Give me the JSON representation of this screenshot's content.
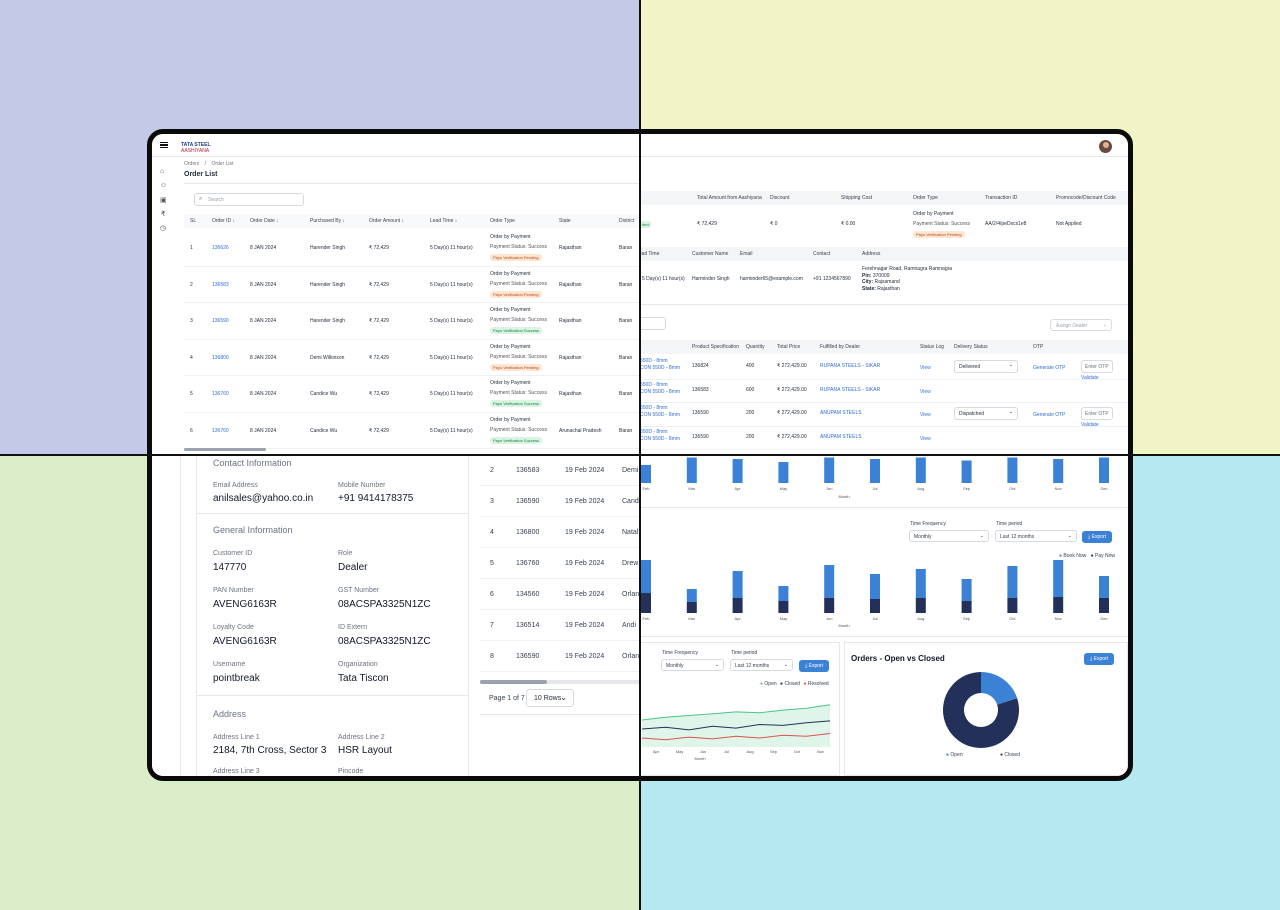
{
  "brand": {
    "line1": "TATA STEEL",
    "line2": "AASHIYANA"
  },
  "breadcrumb": {
    "item1": "Orders",
    "sep": "/",
    "item2": "Order List"
  },
  "page_title": "Order List",
  "search": {
    "placeholder": "Search"
  },
  "order_table": {
    "headers": [
      "SL",
      "Order ID",
      "Order Date",
      "Purchased By",
      "Order Amount",
      "Lead Time",
      "Order Type",
      "State",
      "District"
    ],
    "rows": [
      {
        "sl": "1",
        "id": "136626",
        "date": "8 JAN 2024",
        "by": "Harender Singh",
        "amount": "₹ 72,429",
        "lead": "5 Day(s) 11 hour(s)",
        "type": "Order by Payment",
        "pay": "Payment Status: Success",
        "badge": "Payu Verification Pending",
        "badge_kind": "pend",
        "state": "Rajasthan",
        "district": "Baran"
      },
      {
        "sl": "2",
        "id": "136583",
        "date": "8 JAN 2024",
        "by": "Harender Singh",
        "amount": "₹ 72,429",
        "lead": "5 Day(s) 11 hour(s)",
        "type": "Order by Payment",
        "pay": "Payment Status: Success",
        "badge": "Payu Verification Pending",
        "badge_kind": "pend",
        "state": "Rajasthan",
        "district": "Baran"
      },
      {
        "sl": "3",
        "id": "136590",
        "date": "8 JAN 2024",
        "by": "Harender Singh",
        "amount": "₹ 72,429",
        "lead": "5 Day(s) 11 hour(s)",
        "type": "Order by Payment",
        "pay": "Payment Status: Success",
        "badge": "Payu Verification Success",
        "badge_kind": "succ",
        "state": "Rajasthan",
        "district": "Baran"
      },
      {
        "sl": "4",
        "id": "136800",
        "date": "8 JAN 2024",
        "by": "Demi Wilkinson",
        "amount": "₹ 72,429",
        "lead": "5 Day(s) 11 hour(s)",
        "type": "Order by Payment",
        "pay": "Payment Status: Success",
        "badge": "Payu Verification Pending",
        "badge_kind": "pend",
        "state": "Rajasthan",
        "district": "Baran"
      },
      {
        "sl": "5",
        "id": "136760",
        "date": "8 JAN 2024",
        "by": "Candice Wu",
        "amount": "₹ 72,429",
        "lead": "5 Day(s) 11 hour(s)",
        "type": "Order by Payment",
        "pay": "Payment Status: Success",
        "badge": "Payu Verification Success",
        "badge_kind": "succ",
        "state": "Rajasthan",
        "district": "Baran"
      },
      {
        "sl": "6",
        "id": "136760",
        "date": "8 JAN 2024",
        "by": "Candice Wu",
        "amount": "₹ 72,429",
        "lead": "5 Day(s) 11 hour(s)",
        "type": "Order by Payment",
        "pay": "Payment Status: Success",
        "badge": "Payu Verification Success",
        "badge_kind": "succ",
        "state": "Arunachal Pradesh",
        "district": "Baran"
      }
    ]
  },
  "summary": {
    "headers": [
      "Total Amount from Aashiyana",
      "Discount",
      "Shipping Cost",
      "Order Type",
      "Transaction ID",
      "Promocode/Discount Code"
    ],
    "values": [
      "₹ 72,429",
      "₹ 0",
      "₹ 0.00",
      "",
      "AA/2/4/peDxcs1e8",
      "Not Applied"
    ],
    "first_cell": "ded",
    "order_type_lines": [
      "Order by Payment",
      "Payment Status: Success",
      "Payu Verification Pending"
    ]
  },
  "customer": {
    "headers": [
      "Lead Time",
      "Customer Name",
      "Email",
      "Contact",
      "Address"
    ],
    "lead": "5 Day(s) 11 hour(s)",
    "name": "Harminder Singh",
    "email": "harminder65@example.com",
    "contact": "+91 1234567890",
    "address_line": "Ferehnagar Road, Ramnagra Ramnagra",
    "pin_label": "Pin:",
    "pin": "370009",
    "city_label": "City:",
    "city": "Rajsamand",
    "state_label": "State:",
    "state": "Rajasthan"
  },
  "items": {
    "assign": "Assign Dealer",
    "headers": [
      "Product Specification",
      "Quantity",
      "Total Price",
      "Fulfilled by Dealer",
      "Status Log",
      "Delivery Status",
      "OTP"
    ],
    "rows": [
      {
        "p1": "550D - 8mm",
        "p2": "CON 550D - 8mm",
        "spec": "136824",
        "qty": "400",
        "price": "₹ 272,429.00",
        "dealer": "RUPANA STEELS - SIKAR",
        "log": "View",
        "status": "Delivered",
        "gen": "Generate OTP",
        "otp": "Enter OTP",
        "validate": "Validate"
      },
      {
        "p1": "550D - 8mm",
        "p2": "CON 550D - 8mm",
        "spec": "136583",
        "qty": "600",
        "price": "₹ 272,429.00",
        "dealer": "RUPANA STEELS - SIKAR",
        "log": "View",
        "status": "",
        "gen": "",
        "otp": "",
        "validate": ""
      },
      {
        "p1": "550D - 8mm",
        "p2": "CON 550D - 8mm",
        "spec": "136590",
        "qty": "200",
        "price": "₹ 272,429.00",
        "dealer": "ANUPAM STEELS",
        "log": "View",
        "status": "Dispatched",
        "gen": "Generate OTP",
        "otp": "Enter OTP",
        "validate": "Validate"
      },
      {
        "p1": "550D - 8mm",
        "p2": "CON 550D - 8mm",
        "spec": "136590",
        "qty": "200",
        "price": "₹ 272,429.00",
        "dealer": "ANUPAM STEELS",
        "log": "View",
        "status": "",
        "gen": "",
        "otp": "",
        "validate": ""
      }
    ]
  },
  "profile": {
    "contact_header": "Contact Information",
    "email_label": "Email Address",
    "email": "anilsales@yahoo.co.in",
    "mobile_label": "Mobile Number",
    "mobile": "+91 9414178375",
    "general_header": "General Information",
    "cid_label": "Customer ID",
    "cid": "147770",
    "role_label": "Role",
    "role": "Dealer",
    "pan_label": "PAN Number",
    "pan": "AVENG6163R",
    "gst_label": "GST Number",
    "gst": "08ACSPA3325N1ZC",
    "loyalty_label": "Loyalty Code",
    "loyalty": "AVENG6163R",
    "idext_label": "ID Extern",
    "idext": "08ACSPA3325N1ZC",
    "user_label": "Username",
    "user": "pointbreak",
    "org_label": "Organization",
    "org": "Tata Tiscon",
    "address_header": "Address",
    "a1_label": "Address Line 1",
    "a1": "2184, 7th Cross, Sector 3",
    "a2_label": "Address Line 2",
    "a2": "HSR Layout",
    "a3_label": "Address Line 3",
    "pin_label": "Pincode"
  },
  "order_list_small": {
    "rows": [
      {
        "sl": "2",
        "id": "136583",
        "date": "19 Feb 2024",
        "name": "Demi"
      },
      {
        "sl": "3",
        "id": "136590",
        "date": "19 Feb 2024",
        "name": "Cand"
      },
      {
        "sl": "4",
        "id": "136800",
        "date": "19 Feb 2024",
        "name": "Natal"
      },
      {
        "sl": "5",
        "id": "136760",
        "date": "19 Feb 2024",
        "name": "Drew"
      },
      {
        "sl": "6",
        "id": "134560",
        "date": "19 Feb 2024",
        "name": "Orlan"
      },
      {
        "sl": "7",
        "id": "136514",
        "date": "19 Feb 2024",
        "name": "Andi"
      },
      {
        "sl": "8",
        "id": "136590",
        "date": "19 Feb 2024",
        "name": "Orlan"
      }
    ],
    "page": "Page 1 of 7",
    "rows_select": "10 Rows"
  },
  "charts": {
    "months": [
      "Feb",
      "Mar",
      "Apr",
      "May",
      "Jun",
      "Jul",
      "Aug",
      "Sep",
      "Oct",
      "Nov",
      "Dec"
    ],
    "xlabel": "Month",
    "freq_label": "Time Frequency",
    "freq_value": "Monthly",
    "period_label": "Time period",
    "period_value": "Last 12 months",
    "export": "Export",
    "legend_book": "Book Now",
    "legend_pay": "Pay Now",
    "line_legend": [
      "Open",
      "Closed",
      "Resolved"
    ],
    "donut_title": "Orders - Open vs Closed",
    "donut_legend": [
      "Open",
      "Closed"
    ],
    "colors": {
      "blue": "#3b82d6",
      "navy": "#23305a",
      "green": "#4cc38a",
      "red": "#d9534f"
    }
  },
  "chart_data": [
    {
      "type": "bar",
      "categories": [
        "Feb",
        "Mar",
        "Apr",
        "May",
        "Jun",
        "Jul",
        "Aug",
        "Sep",
        "Oct",
        "Nov",
        "Dec"
      ],
      "xlabel": "Month",
      "series": [
        {
          "values": [
            60,
            85,
            80,
            70,
            85,
            80,
            85,
            75,
            85,
            80,
            85
          ]
        }
      ]
    },
    {
      "type": "bar",
      "categories": [
        "Feb",
        "Mar",
        "Apr",
        "May",
        "Jun",
        "Jul",
        "Aug",
        "Sep",
        "Oct",
        "Nov",
        "Dec"
      ],
      "xlabel": "Month",
      "series": [
        {
          "name": "Book Now",
          "values": [
            34,
            13,
            27,
            15,
            33,
            25,
            29,
            22,
            32,
            39,
            22
          ]
        },
        {
          "name": "Pay Now",
          "values": [
            20,
            11,
            15,
            12,
            15,
            14,
            15,
            12,
            15,
            16,
            15
          ]
        }
      ]
    },
    {
      "type": "line",
      "categories": [
        "Apr",
        "May",
        "Jun",
        "Jul",
        "Aug",
        "Sep",
        "Oct",
        "Nov",
        "Dec"
      ],
      "xlabel": "Month",
      "series": [
        {
          "name": "Open",
          "values": [
            55,
            58,
            60,
            62,
            64,
            63,
            66,
            68,
            72
          ]
        },
        {
          "name": "Closed",
          "values": [
            45,
            47,
            44,
            48,
            46,
            50,
            49,
            52,
            54
          ]
        },
        {
          "name": "Resolved",
          "values": [
            35,
            33,
            36,
            34,
            37,
            35,
            38,
            37,
            40
          ]
        }
      ]
    },
    {
      "type": "pie",
      "title": "Orders - Open vs Closed",
      "categories": [
        "Open",
        "Closed"
      ],
      "values": [
        20,
        80
      ]
    }
  ]
}
